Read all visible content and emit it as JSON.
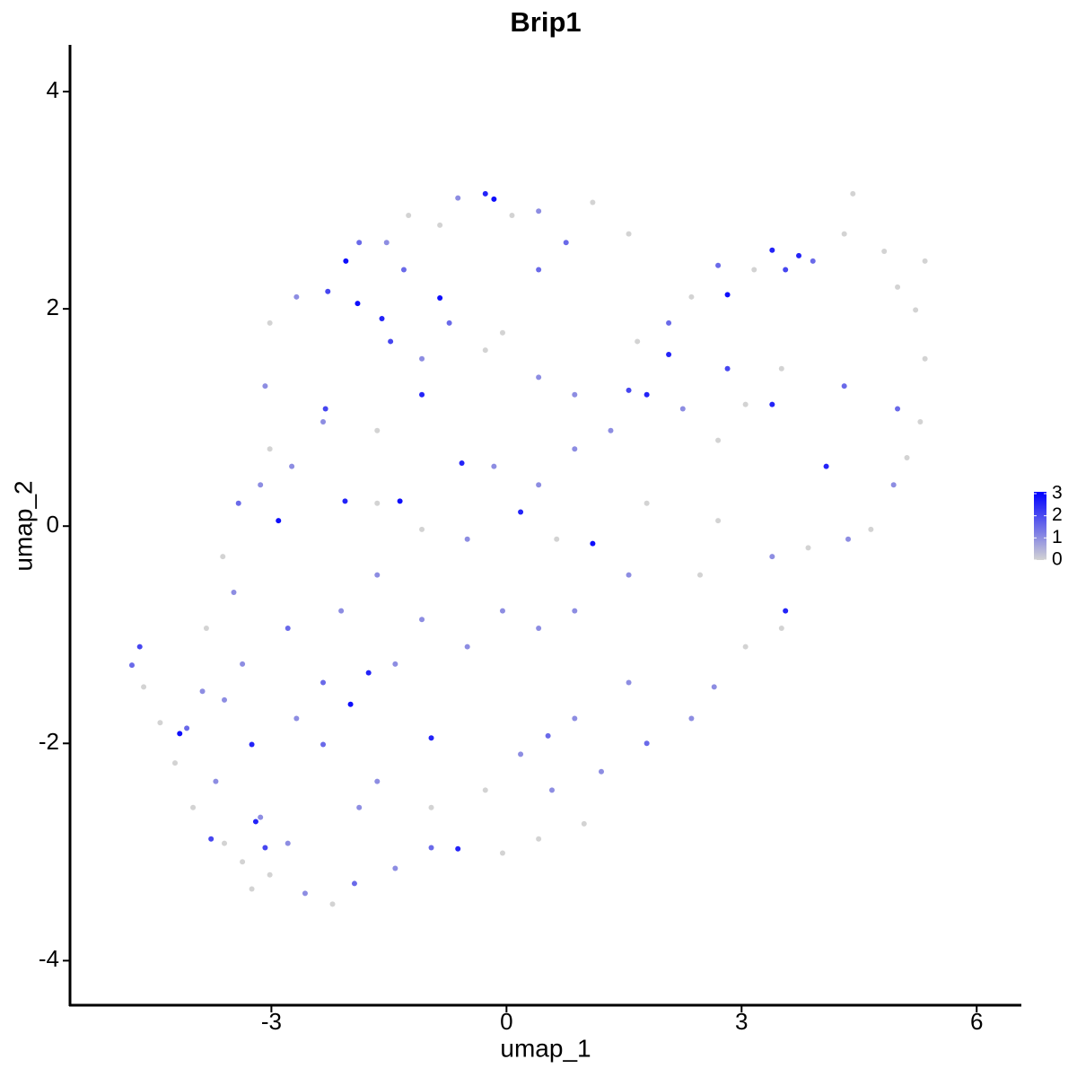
{
  "chart_data": {
    "type": "scatter",
    "title": "Brip1",
    "x_label": "umap_1",
    "y_label": "umap_2",
    "xlim": [
      -5.57,
      6.57
    ],
    "ylim": [
      -4.41,
      4.43
    ],
    "xticks": [
      -3,
      0,
      3,
      6
    ],
    "yticks": [
      -4,
      -2,
      0,
      2,
      4
    ],
    "color_low": "#d3d3d3",
    "color_high": "#0000ff",
    "color_lim": [
      0,
      3
    ],
    "colorbar_ticks": [
      0,
      1,
      2,
      3
    ],
    "x": [
      -4.68,
      -4.78,
      -4.63,
      -4.42,
      -4.17,
      -4.08,
      -4.23,
      -4.0,
      -3.71,
      -3.6,
      -3.37,
      -3.08,
      -3.02,
      -2.79,
      -2.57,
      -2.22,
      -1.94,
      -1.42,
      -0.96,
      -0.62,
      -0.05,
      0.41,
      0.99,
      0.58,
      1.21,
      1.79,
      2.36,
      2.65,
      3.05,
      3.51,
      3.56,
      3.39,
      3.85,
      4.36,
      4.65,
      4.94,
      5.11,
      5.28,
      4.99,
      5.34,
      5.22,
      5.34,
      4.99,
      4.82,
      4.42,
      4.31,
      3.91,
      3.73,
      3.56,
      3.39,
      3.16,
      2.82,
      2.7,
      2.36,
      2.07,
      1.67,
      1.56,
      1.79,
      2.07,
      2.25,
      2.7,
      3.05,
      3.39,
      4.08,
      4.31,
      3.51,
      2.82,
      1.56,
      1.1,
      0.76,
      0.41,
      0.07,
      -0.16,
      -0.27,
      -0.62,
      -0.85,
      -1.25,
      -1.53,
      -1.88,
      -2.05,
      -2.28,
      -2.68,
      -3.02,
      -3.08,
      -3.02,
      -3.14,
      -3.42,
      -3.62,
      -3.48,
      -3.83,
      -3.37,
      -3.6,
      -2.79,
      -2.34,
      -1.76,
      -1.99,
      -1.42,
      -1.08,
      -0.5,
      -0.05,
      0.41,
      0.87,
      1.56,
      2.47,
      2.7,
      1.79,
      1.1,
      0.64,
      0.18,
      -0.5,
      -1.08,
      -1.65,
      -1.36,
      -2.06,
      -2.91,
      -2.74,
      -2.34,
      -1.65,
      -1.08,
      -0.57,
      -1.08,
      -0.73,
      -0.05,
      0.41,
      0.87,
      1.33,
      0.87,
      0.41,
      -0.16,
      -0.85,
      -1.48,
      -1.9,
      -1.59,
      -2.31,
      -0.27,
      0.41,
      -1.31,
      -1.65,
      -2.11,
      -2.68,
      -2.34,
      -1.65,
      -0.96,
      -0.27,
      0.18,
      0.87,
      1.56,
      0.53,
      -0.96,
      -1.88,
      -3.25,
      -3.14,
      -3.25,
      -3.77,
      -3.2,
      -3.88
    ],
    "y": [
      -1.11,
      -1.28,
      -1.48,
      -1.81,
      -1.91,
      -1.86,
      -2.18,
      -2.59,
      -2.35,
      -2.92,
      -3.09,
      -2.96,
      -3.21,
      -2.92,
      -3.38,
      -3.48,
      -3.29,
      -3.15,
      -2.96,
      -2.97,
      -3.01,
      -2.88,
      -2.74,
      -2.43,
      -2.26,
      -2.0,
      -1.77,
      -1.48,
      -1.11,
      -0.94,
      -0.78,
      -0.28,
      -0.2,
      -0.12,
      -0.03,
      0.38,
      0.63,
      0.96,
      1.08,
      1.54,
      1.99,
      2.44,
      2.2,
      2.53,
      3.06,
      2.69,
      2.44,
      2.49,
      2.36,
      2.54,
      2.36,
      2.13,
      2.4,
      2.11,
      1.87,
      1.7,
      1.25,
      1.21,
      1.58,
      1.08,
      0.79,
      1.12,
      1.12,
      0.55,
      1.29,
      1.45,
      1.45,
      2.69,
      2.98,
      2.61,
      2.9,
      2.86,
      3.01,
      3.06,
      3.02,
      2.77,
      2.86,
      2.61,
      2.61,
      2.44,
      2.16,
      2.11,
      1.87,
      1.29,
      0.71,
      0.38,
      0.21,
      -0.28,
      -0.61,
      -0.94,
      -1.27,
      -1.6,
      -0.94,
      -1.44,
      -1.35,
      -1.64,
      -1.27,
      -0.86,
      -1.11,
      -0.78,
      -0.94,
      -0.78,
      -0.45,
      -0.45,
      0.05,
      0.21,
      -0.16,
      -0.12,
      0.13,
      -0.12,
      -0.03,
      0.21,
      0.23,
      0.23,
      0.05,
      0.55,
      0.96,
      0.88,
      1.21,
      0.58,
      1.54,
      1.87,
      1.78,
      1.37,
      1.21,
      0.88,
      0.71,
      0.38,
      0.55,
      2.1,
      1.7,
      2.05,
      1.91,
      1.08,
      1.62,
      2.36,
      2.36,
      -0.45,
      -0.78,
      -1.77,
      -2.01,
      -2.35,
      -2.59,
      -2.43,
      -2.1,
      -1.77,
      -1.44,
      -1.93,
      -1.95,
      -2.59,
      -2.01,
      -2.68,
      -3.34,
      -2.88,
      -2.72,
      -1.52
    ],
    "values": [
      2,
      1.5,
      0,
      0,
      2.8,
      1.5,
      0,
      0,
      1,
      0,
      0,
      2,
      0,
      1,
      1,
      0,
      1.5,
      1,
      1.5,
      2.5,
      0,
      0,
      0,
      1,
      1,
      1.5,
      1,
      1,
      0,
      0,
      2.5,
      1,
      0,
      1,
      0,
      1,
      0,
      0,
      1.5,
      0,
      0,
      0,
      0,
      0,
      0,
      0,
      1.5,
      2.5,
      2,
      2.5,
      0,
      2.8,
      1.5,
      0,
      1.5,
      0,
      2,
      2.5,
      2.5,
      1,
      0,
      0,
      2.5,
      2.5,
      1.5,
      0,
      2,
      0,
      0,
      1.5,
      1,
      0,
      2.8,
      2.5,
      1,
      0,
      0,
      1,
      1.5,
      2.8,
      2,
      1,
      0,
      1,
      0,
      1,
      1.5,
      0,
      1,
      0,
      1,
      1,
      1.5,
      1.5,
      2.5,
      2.8,
      1,
      1,
      1,
      1,
      1,
      1,
      1,
      0,
      0,
      0,
      2.8,
      0,
      2.5,
      1,
      0,
      0,
      2.8,
      2.5,
      2.8,
      1,
      1,
      0,
      2.5,
      2.5,
      1,
      1.5,
      0,
      1,
      1,
      1,
      1,
      1,
      1,
      2.8,
      2,
      2.8,
      2.5,
      2,
      0,
      1.5,
      1.5,
      1,
      1,
      1,
      1.5,
      1,
      0,
      0,
      1,
      1,
      1,
      1.5,
      2.5,
      1,
      2.5,
      1,
      0,
      2,
      2.5,
      1
    ]
  }
}
